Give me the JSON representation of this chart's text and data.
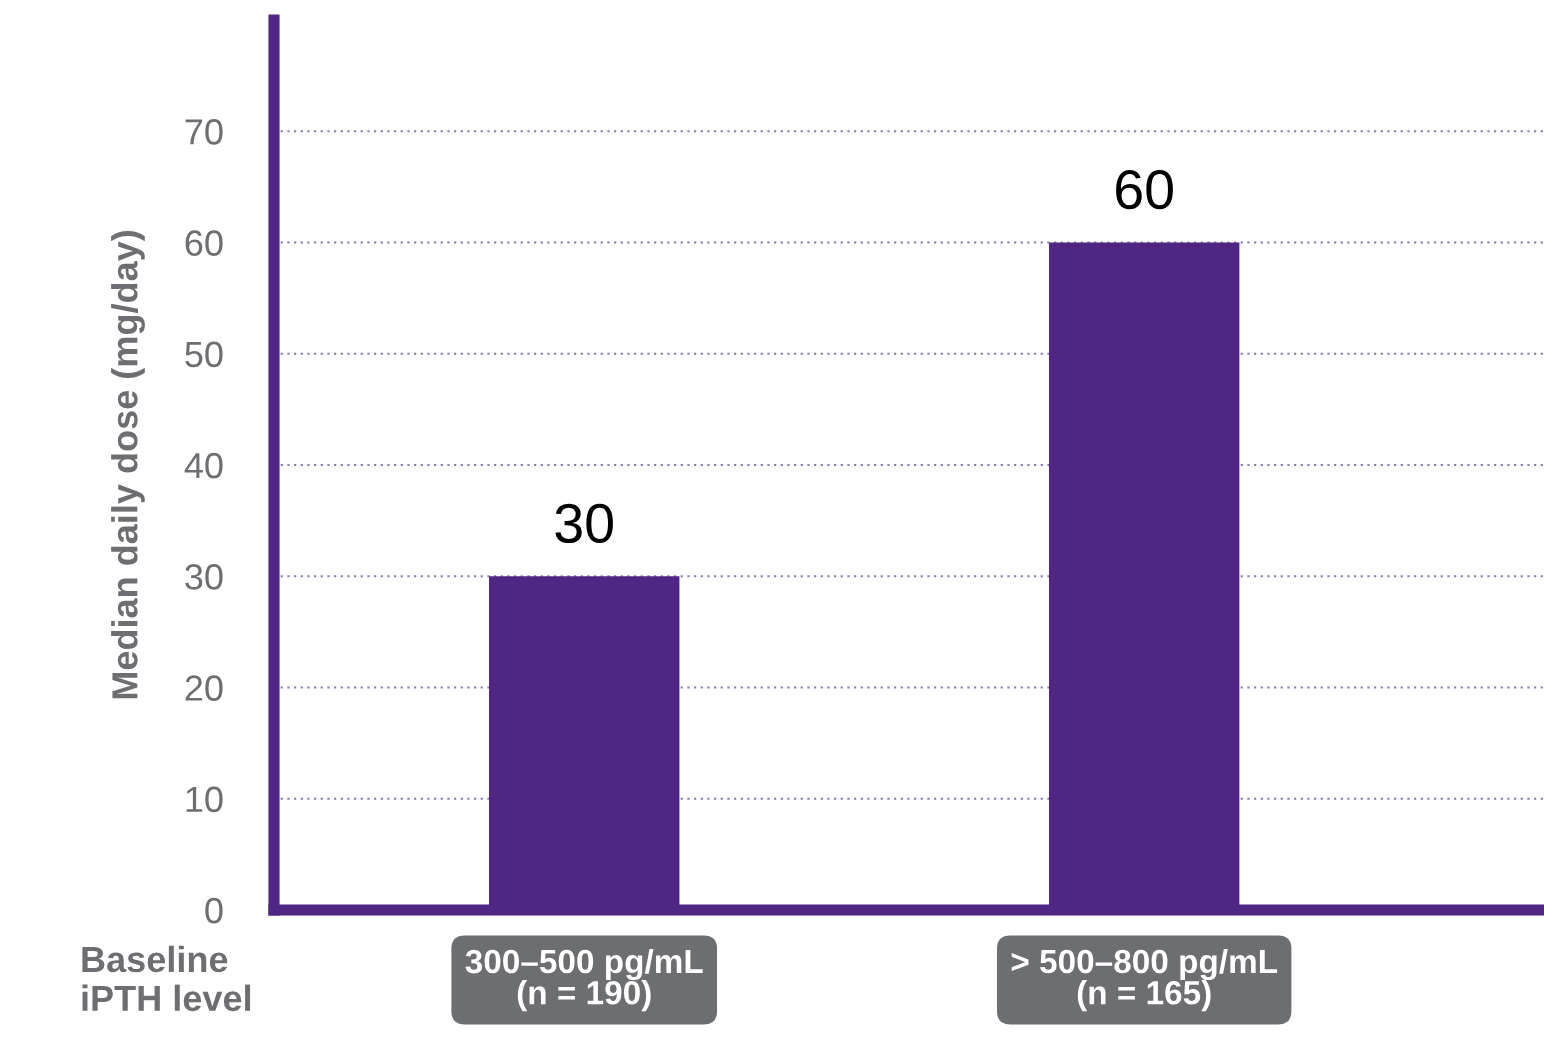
{
  "chart_data": {
    "type": "bar",
    "ylabel": "Median daily dose (mg/day)",
    "categories": [
      "300–500 pg/mL\n(n = 190)",
      "> 500–800 pg/mL\n(n = 165)"
    ],
    "values": [
      30,
      60
    ],
    "color": "#4f2683",
    "data_labels": true,
    "ylim": [
      0,
      80
    ],
    "yticks": [
      0,
      10,
      20,
      30,
      40,
      50,
      60,
      70
    ],
    "grid": "y",
    "annotations": [
      "Baseline\niPTH level"
    ]
  }
}
